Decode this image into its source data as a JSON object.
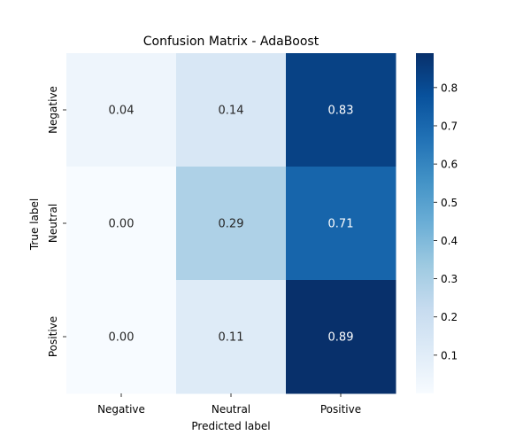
{
  "chart_data": {
    "type": "heatmap",
    "title": "Confusion Matrix - AdaBoost",
    "xlabel": "Predicted label",
    "ylabel": "True label",
    "x_categories": [
      "Negative",
      "Neutral",
      "Positive"
    ],
    "y_categories": [
      "Negative",
      "Neutral",
      "Positive"
    ],
    "values": [
      [
        0.04,
        0.14,
        0.83
      ],
      [
        0.0,
        0.29,
        0.71
      ],
      [
        0.0,
        0.11,
        0.89
      ]
    ],
    "cell_labels": [
      [
        "0.04",
        "0.14",
        "0.83"
      ],
      [
        "0.00",
        "0.29",
        "0.71"
      ],
      [
        "0.00",
        "0.11",
        "0.89"
      ]
    ],
    "colormap": "Blues",
    "color_range": [
      0,
      0.89
    ],
    "colorbar": {
      "ticks": [
        0.1,
        0.2,
        0.3,
        0.4,
        0.5,
        0.6,
        0.7,
        0.8
      ],
      "tick_labels": [
        "0.1",
        "0.2",
        "0.3",
        "0.4",
        "0.5",
        "0.6",
        "0.7",
        "0.8"
      ]
    },
    "grid": false
  }
}
